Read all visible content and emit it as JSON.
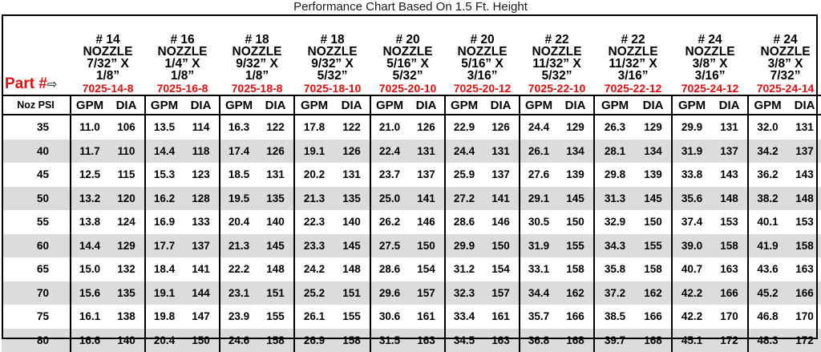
{
  "title": "Performance Chart Based On 1.5 Ft. Height",
  "part_label": "Part #",
  "part_arrow": "⇨",
  "noz_psi_label": "Noz PSI",
  "gpm_label": "GPM",
  "dia_label": "DIA",
  "columns": [
    {
      "num": "# 14",
      "nozzle": "NOZZLE",
      "size1": "7/32” X",
      "size2": "1/8”",
      "part": "7025-14-8"
    },
    {
      "num": "# 16",
      "nozzle": "NOZZLE",
      "size1": "1/4” X",
      "size2": "1/8”",
      "part": "7025-16-8"
    },
    {
      "num": "# 18",
      "nozzle": "NOZZLE",
      "size1": "9/32” X",
      "size2": "1/8”",
      "part": "7025-18-8"
    },
    {
      "num": "# 18",
      "nozzle": "NOZZLE",
      "size1": "9/32” X",
      "size2": "5/32”",
      "part": "7025-18-10"
    },
    {
      "num": "# 20",
      "nozzle": "NOZZLE",
      "size1": "5/16” X",
      "size2": "5/32”",
      "part": "7025-20-10"
    },
    {
      "num": "# 20",
      "nozzle": "NOZZLE",
      "size1": "5/16” X",
      "size2": "3/16”",
      "part": "7025-20-12"
    },
    {
      "num": "# 22",
      "nozzle": "NOZZLE",
      "size1": "11/32” X",
      "size2": "5/32”",
      "part": "7025-22-10"
    },
    {
      "num": "# 22",
      "nozzle": "NOZZLE",
      "size1": "11/32” X",
      "size2": "3/16”",
      "part": "7025-22-12"
    },
    {
      "num": "# 24",
      "nozzle": "NOZZLE",
      "size1": "3/8” X",
      "size2": "3/16”",
      "part": "7025-24-12"
    },
    {
      "num": "# 24",
      "nozzle": "NOZZLE",
      "size1": "3/8” X",
      "size2": "7/32”",
      "part": "7025-24-14"
    }
  ],
  "rows": [
    {
      "psi": "35",
      "cells": [
        "11.0",
        "106",
        "13.5",
        "114",
        "16.3",
        "122",
        "17.8",
        "122",
        "21.0",
        "126",
        "22.9",
        "126",
        "24.4",
        "129",
        "26.3",
        "129",
        "29.9",
        "131",
        "32.0",
        "131"
      ]
    },
    {
      "psi": "40",
      "cells": [
        "11.7",
        "110",
        "14.4",
        "118",
        "17.4",
        "126",
        "19.1",
        "126",
        "22.4",
        "131",
        "24.4",
        "131",
        "26.1",
        "134",
        "28.1",
        "134",
        "31.9",
        "137",
        "34.2",
        "137"
      ]
    },
    {
      "psi": "45",
      "cells": [
        "12.5",
        "115",
        "15.3",
        "123",
        "18.5",
        "131",
        "20.2",
        "131",
        "23.7",
        "137",
        "25.9",
        "137",
        "27.6",
        "139",
        "29.8",
        "139",
        "33.8",
        "143",
        "36.2",
        "143"
      ]
    },
    {
      "psi": "50",
      "cells": [
        "13.2",
        "120",
        "16.2",
        "128",
        "19.5",
        "135",
        "21.3",
        "135",
        "25.0",
        "141",
        "27.2",
        "141",
        "29.1",
        "145",
        "31.3",
        "145",
        "35.6",
        "148",
        "38.2",
        "148"
      ]
    },
    {
      "psi": "55",
      "cells": [
        "13.8",
        "124",
        "16.9",
        "133",
        "20.4",
        "140",
        "22.3",
        "140",
        "26.2",
        "146",
        "28.6",
        "146",
        "30.5",
        "150",
        "32.9",
        "150",
        "37.4",
        "153",
        "40.1",
        "153"
      ]
    },
    {
      "psi": "60",
      "cells": [
        "14.4",
        "129",
        "17.7",
        "137",
        "21.3",
        "145",
        "23.3",
        "145",
        "27.5",
        "150",
        "29.9",
        "150",
        "31.9",
        "155",
        "34.3",
        "155",
        "39.0",
        "158",
        "41.9",
        "158"
      ]
    },
    {
      "psi": "65",
      "cells": [
        "15.0",
        "132",
        "18.4",
        "141",
        "22.2",
        "148",
        "24.2",
        "148",
        "28.6",
        "154",
        "31.2",
        "154",
        "33.1",
        "158",
        "35.8",
        "158",
        "40.7",
        "163",
        "43.6",
        "163"
      ]
    },
    {
      "psi": "70",
      "cells": [
        "15.6",
        "135",
        "19.1",
        "144",
        "23.1",
        "151",
        "25.2",
        "151",
        "29.6",
        "157",
        "32.3",
        "157",
        "34.4",
        "162",
        "37.2",
        "162",
        "42.2",
        "166",
        "45.2",
        "166"
      ]
    },
    {
      "psi": "75",
      "cells": [
        "16.1",
        "138",
        "19.8",
        "147",
        "23.9",
        "155",
        "26.1",
        "155",
        "30.6",
        "161",
        "33.4",
        "161",
        "35.7",
        "166",
        "38.5",
        "166",
        "42.2",
        "170",
        "46.8",
        "170"
      ]
    },
    {
      "psi": "80",
      "cells": [
        "16.6",
        "140",
        "20.4",
        "150",
        "24.6",
        "158",
        "26.9",
        "158",
        "31.5",
        "163",
        "34.5",
        "163",
        "36.8",
        "168",
        "39.7",
        "168",
        "45.1",
        "172",
        "48.3",
        "172"
      ]
    }
  ]
}
